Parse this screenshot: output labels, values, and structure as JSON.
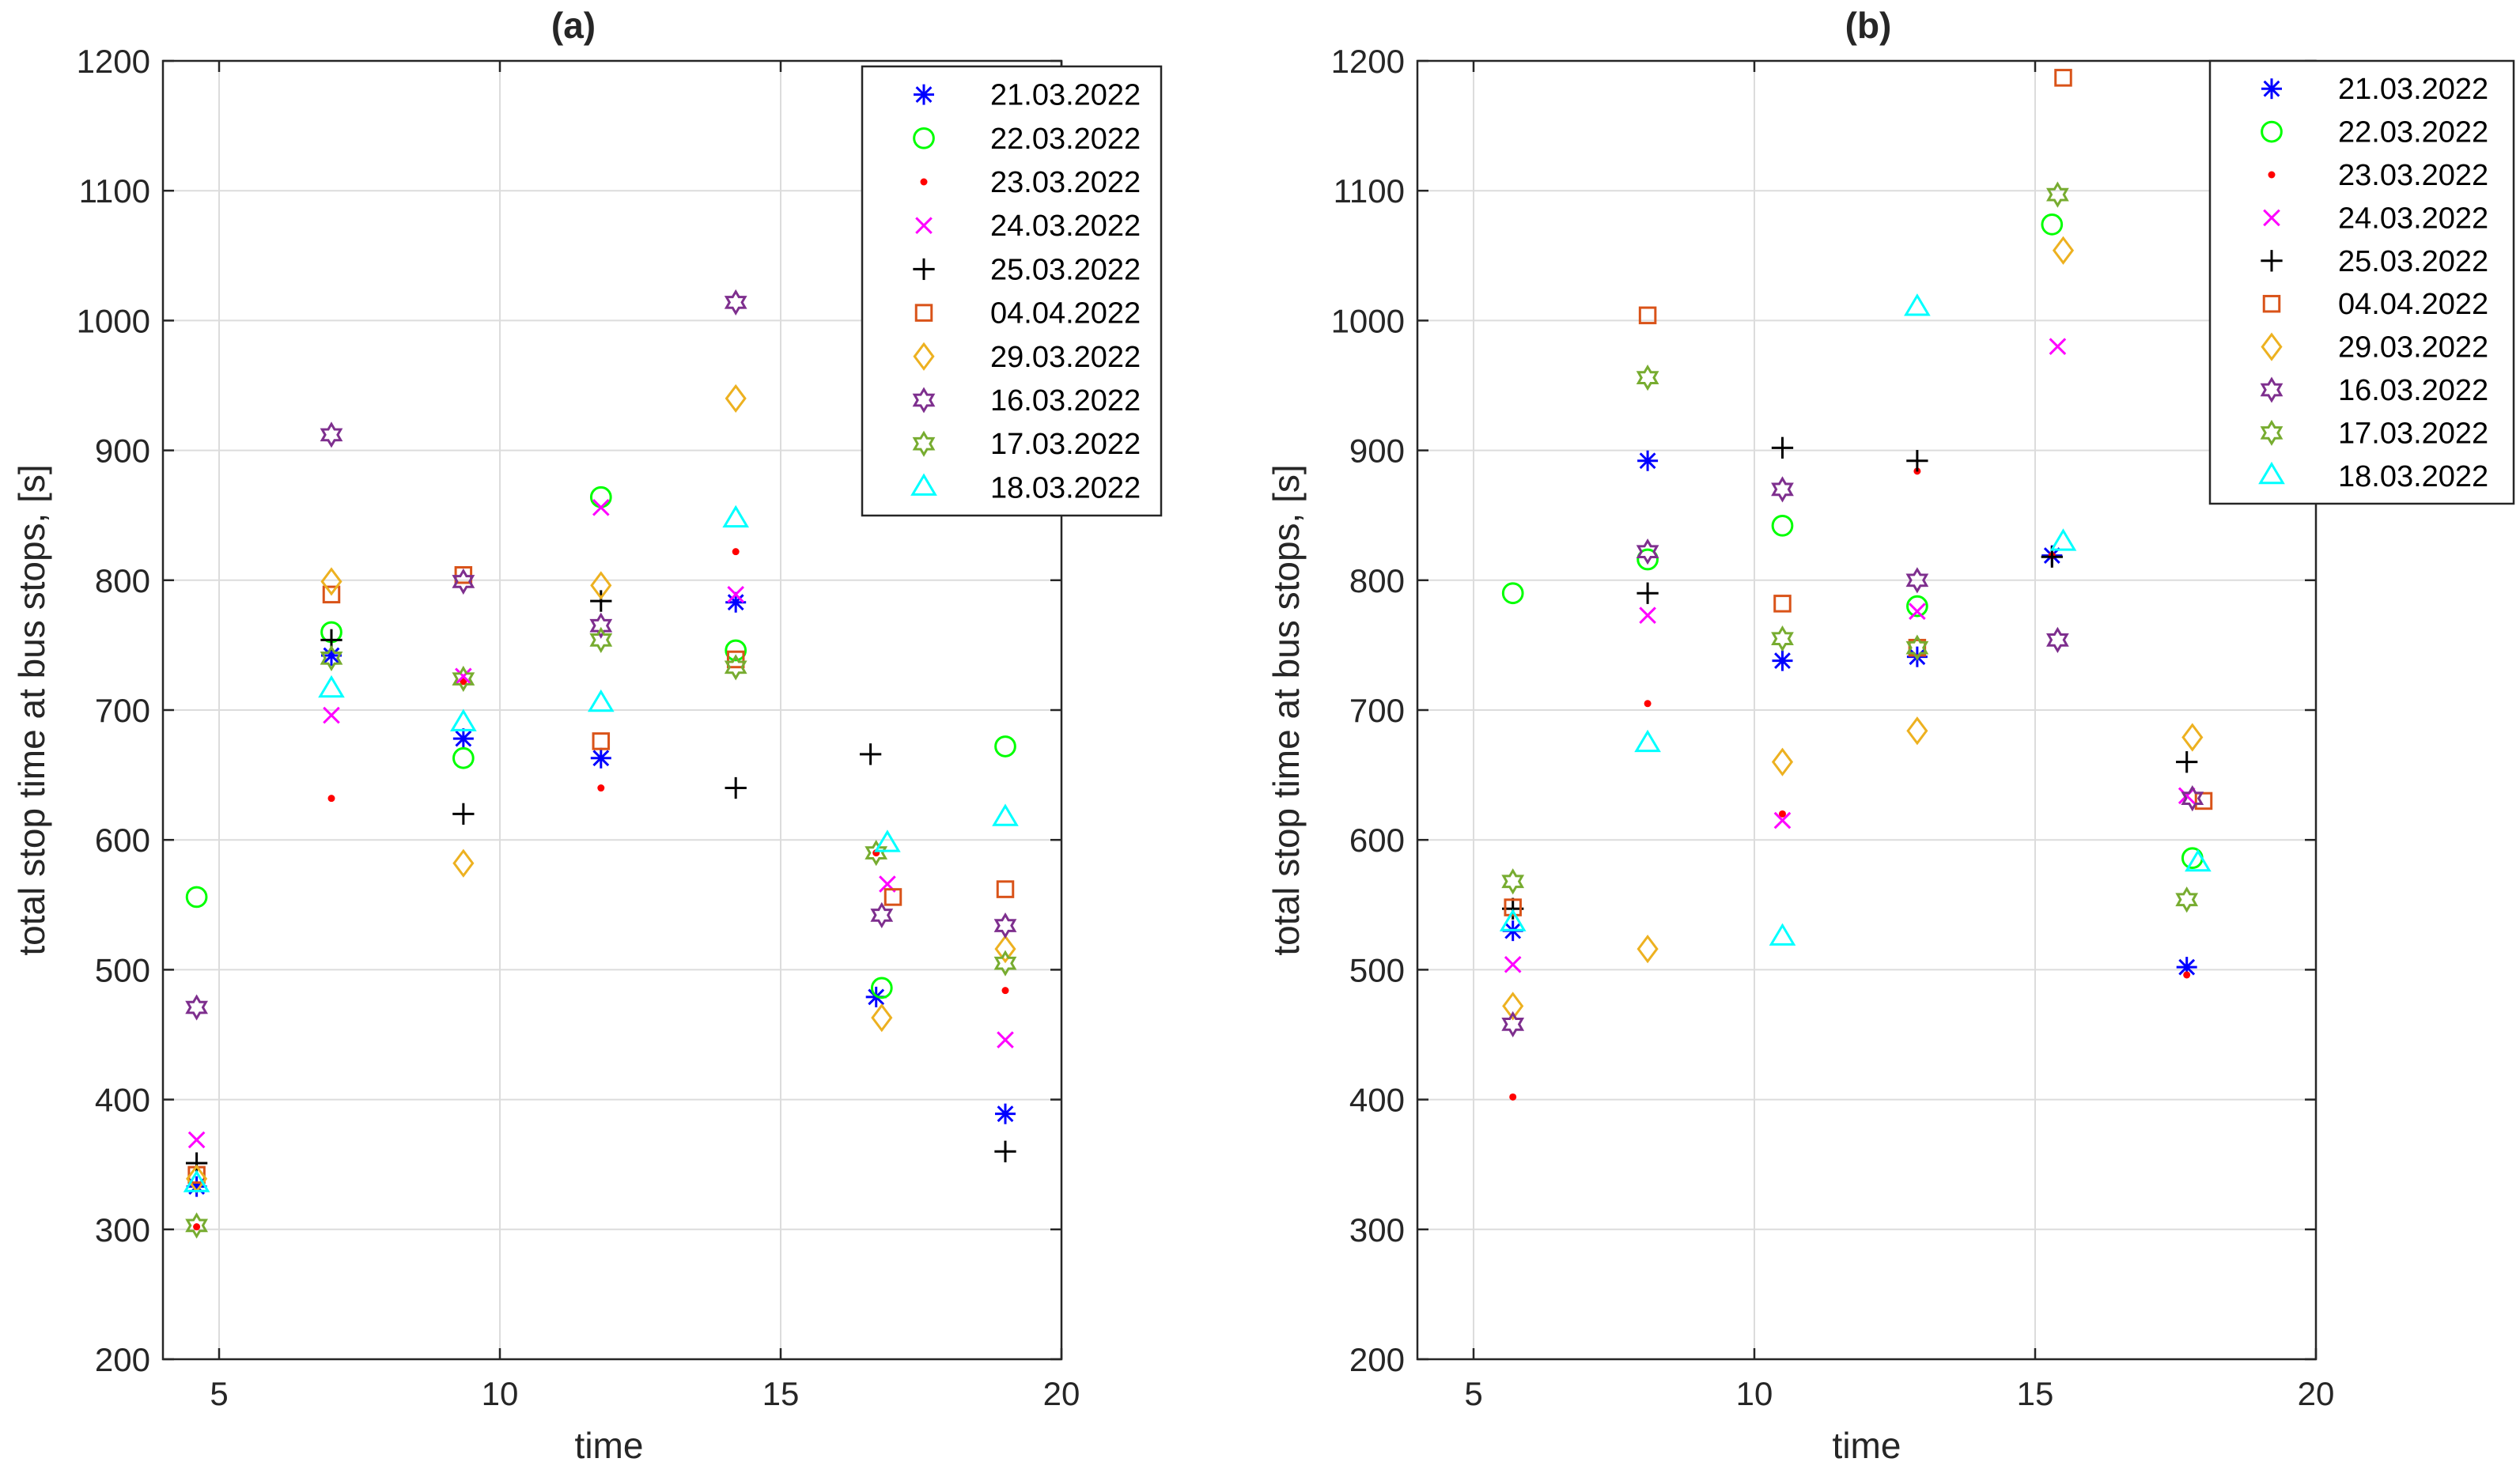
{
  "chart_data": [
    {
      "type": "scatter",
      "title": "(a)",
      "xlabel": "time",
      "ylabel": "total stop time at bus stops, [s]",
      "xlim": [
        4,
        20
      ],
      "ylim": [
        200,
        1200
      ],
      "xticks": [
        "5",
        "10",
        "15",
        "20"
      ],
      "yticks": [
        "200",
        "300",
        "400",
        "500",
        "600",
        "700",
        "800",
        "900",
        "1000",
        "1100",
        "1200"
      ],
      "grid": true,
      "legend_position": "top-right",
      "series": [
        {
          "name": "21.03.2022",
          "marker": "asterisk",
          "color": "#0000ff",
          "x": [
            4.6,
            7.0,
            9.35,
            11.8,
            14.2,
            16.7,
            19.0
          ],
          "y": [
            333,
            742,
            678,
            663,
            783,
            479,
            389
          ]
        },
        {
          "name": "22.03.2022",
          "marker": "circle",
          "color": "#00ff00",
          "x": [
            4.6,
            7.0,
            9.35,
            11.8,
            14.2,
            16.8,
            19.0
          ],
          "y": [
            556,
            760,
            663,
            864,
            746,
            486,
            672
          ]
        },
        {
          "name": "23.03.2022",
          "marker": "dot",
          "color": "#ff0000",
          "x": [
            4.6,
            7.0,
            9.35,
            11.8,
            14.2,
            16.7,
            19.0
          ],
          "y": [
            302,
            632,
            722,
            640,
            822,
            590,
            484
          ]
        },
        {
          "name": "24.03.2022",
          "marker": "x",
          "color": "#ff00ff",
          "x": [
            4.6,
            7.0,
            9.35,
            11.8,
            14.2,
            16.9,
            19.0
          ],
          "y": [
            369,
            696,
            726,
            856,
            789,
            566,
            446
          ]
        },
        {
          "name": "25.03.2022",
          "marker": "plus",
          "color": "#000000",
          "x": [
            4.6,
            7.0,
            9.35,
            11.8,
            14.2,
            16.6,
            19.0
          ],
          "y": [
            351,
            754,
            620,
            784,
            640,
            666,
            360
          ]
        },
        {
          "name": "04.04.2022",
          "marker": "square",
          "color": "#d95319",
          "x": [
            4.6,
            7.0,
            9.35,
            11.8,
            14.2,
            17.0,
            19.0
          ],
          "y": [
            342,
            789,
            804,
            676,
            739,
            556,
            562
          ]
        },
        {
          "name": "29.03.2022",
          "marker": "diamond",
          "color": "#edb120",
          "x": [
            4.6,
            7.0,
            9.35,
            11.8,
            14.2,
            16.8,
            19.0
          ],
          "y": [
            339,
            799,
            582,
            796,
            940,
            463,
            516
          ]
        },
        {
          "name": "16.03.2022",
          "marker": "hexagram",
          "color": "#7e2f8e",
          "x": [
            4.6,
            7.0,
            9.35,
            11.8,
            14.2,
            16.8,
            19.0
          ],
          "y": [
            471,
            912,
            799,
            765,
            1014,
            542,
            534
          ]
        },
        {
          "name": "17.03.2022",
          "marker": "hexagram",
          "color": "#77ac30",
          "x": [
            4.6,
            7.0,
            9.35,
            11.8,
            14.2,
            16.7,
            19.0
          ],
          "y": [
            303,
            740,
            724,
            754,
            733,
            590,
            505
          ]
        },
        {
          "name": "18.03.2022",
          "marker": "triangle",
          "color": "#00ffff",
          "x": [
            4.6,
            7.0,
            9.35,
            11.8,
            14.2,
            16.9,
            19.0
          ],
          "y": [
            335,
            716,
            690,
            705,
            847,
            597,
            617
          ]
        }
      ]
    },
    {
      "type": "scatter",
      "title": "(b)",
      "xlabel": "time",
      "ylabel": "total stop time at bus stops, [s]",
      "xlim": [
        4,
        20
      ],
      "ylim": [
        200,
        1200
      ],
      "xticks": [
        "5",
        "10",
        "15",
        "20"
      ],
      "yticks": [
        "200",
        "300",
        "400",
        "500",
        "600",
        "700",
        "800",
        "900",
        "1000",
        "1100",
        "1200"
      ],
      "grid": true,
      "legend_position": "top-right",
      "series": [
        {
          "name": "21.03.2022",
          "marker": "asterisk",
          "color": "#0000ff",
          "x": [
            5.7,
            8.1,
            10.5,
            12.9,
            15.3,
            17.7
          ],
          "y": [
            530,
            892,
            738,
            741,
            819,
            502
          ]
        },
        {
          "name": "22.03.2022",
          "marker": "circle",
          "color": "#00ff00",
          "x": [
            5.7,
            8.1,
            10.5,
            12.9,
            15.3,
            17.8
          ],
          "y": [
            790,
            816,
            842,
            780,
            1074,
            586
          ]
        },
        {
          "name": "23.03.2022",
          "marker": "dot",
          "color": "#ff0000",
          "x": [
            5.7,
            8.1,
            10.5,
            12.9,
            15.3,
            17.7
          ],
          "y": [
            402,
            705,
            620,
            884,
            819,
            496
          ]
        },
        {
          "name": "24.03.2022",
          "marker": "x",
          "color": "#ff00ff",
          "x": [
            5.7,
            8.1,
            10.5,
            12.9,
            15.4,
            17.7
          ],
          "y": [
            504,
            773,
            615,
            776,
            980,
            634
          ]
        },
        {
          "name": "25.03.2022",
          "marker": "plus",
          "color": "#000000",
          "x": [
            5.7,
            8.1,
            10.5,
            12.9,
            15.3,
            17.7
          ],
          "y": [
            547,
            790,
            902,
            892,
            818,
            660
          ]
        },
        {
          "name": "04.04.2022",
          "marker": "square",
          "color": "#d95319",
          "x": [
            5.7,
            8.1,
            10.5,
            12.9,
            15.5,
            18.0
          ],
          "y": [
            548,
            1004,
            782,
            748,
            1187,
            630
          ]
        },
        {
          "name": "29.03.2022",
          "marker": "diamond",
          "color": "#edb120",
          "x": [
            5.7,
            8.1,
            10.5,
            12.9,
            15.5,
            17.8
          ],
          "y": [
            472,
            516,
            660,
            684,
            1054,
            679
          ]
        },
        {
          "name": "16.03.2022",
          "marker": "hexagram",
          "color": "#7e2f8e",
          "x": [
            5.7,
            8.1,
            10.5,
            12.9,
            15.4,
            17.8
          ],
          "y": [
            458,
            822,
            870,
            800,
            754,
            632
          ]
        },
        {
          "name": "17.03.2022",
          "marker": "hexagram",
          "color": "#77ac30",
          "x": [
            5.7,
            8.1,
            10.5,
            12.9,
            15.4,
            17.7
          ],
          "y": [
            568,
            956,
            755,
            748,
            1097,
            554
          ]
        },
        {
          "name": "18.03.2022",
          "marker": "triangle",
          "color": "#00ffff",
          "x": [
            5.7,
            8.1,
            10.5,
            12.9,
            15.5,
            17.9
          ],
          "y": [
            536,
            674,
            525,
            1010,
            829,
            582
          ]
        }
      ]
    }
  ]
}
